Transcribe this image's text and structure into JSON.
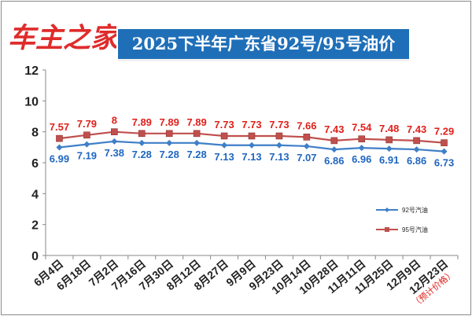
{
  "brand": {
    "logo_text": "车主之家",
    "logo_color_red": "#e02b2b",
    "logo_color_blue": "#1f6fb8"
  },
  "title": "2025下半年广东省92号/95号油价",
  "chart_data": {
    "type": "line",
    "title": "2025下半年广东省92号/95号油价",
    "categories": [
      "6月4日",
      "6月18日",
      "7月2日",
      "7月16日",
      "7月30日",
      "8月12日",
      "8月27日",
      "9月9日",
      "9月23日",
      "10月14日",
      "10月28日",
      "11月11日",
      "11月25日",
      "12月9日",
      "12月23日"
    ],
    "last_category_note": "（预计价格）",
    "ylim": [
      0,
      12
    ],
    "yticks": [
      0,
      2,
      4,
      6,
      8,
      10,
      12
    ],
    "grid": false,
    "legend_position": "right",
    "series": [
      {
        "name": "92号汽油",
        "color": "#3f7fc8",
        "label_color": "#1f66c0",
        "marker": "diamond",
        "values": [
          6.99,
          7.19,
          7.38,
          7.28,
          7.28,
          7.28,
          7.13,
          7.13,
          7.13,
          7.07,
          6.86,
          6.96,
          6.91,
          6.86,
          6.73
        ],
        "labels": [
          "6.99",
          "7.19",
          "7.38",
          "7.28",
          "7.28",
          "7.28",
          "7.13",
          "7.13",
          "7.13",
          "7.07",
          "6.86",
          "6.96",
          "6.91",
          "6.86",
          "6.73"
        ]
      },
      {
        "name": "95号汽油",
        "color": "#c0504d",
        "label_color": "#e0201a",
        "marker": "square",
        "values": [
          7.57,
          7.79,
          8,
          7.89,
          7.89,
          7.89,
          7.73,
          7.73,
          7.73,
          7.66,
          7.43,
          7.54,
          7.48,
          7.43,
          7.29
        ],
        "labels": [
          "7.57",
          "7.79",
          "8",
          "7.89",
          "7.89",
          "7.89",
          "7.73",
          "7.73",
          "7.73",
          "7.66",
          "7.43",
          "7.54",
          "7.48",
          "7.43",
          "7.29"
        ]
      }
    ]
  }
}
